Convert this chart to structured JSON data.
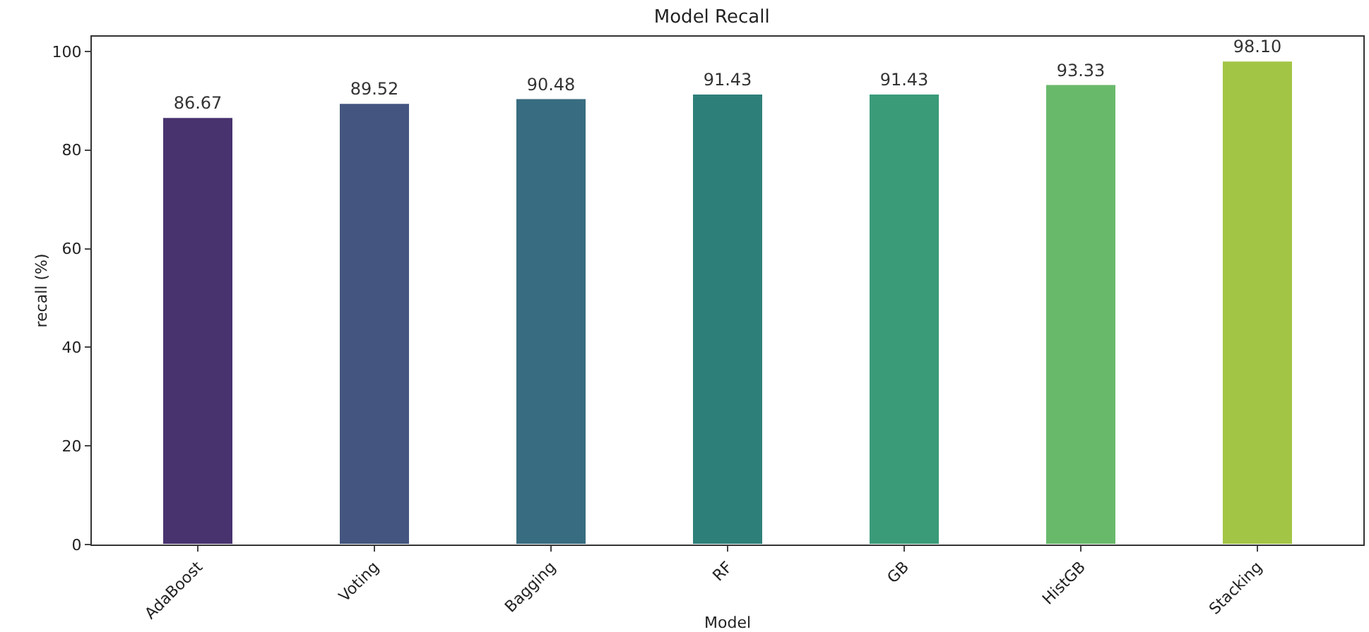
{
  "chart_data": {
    "type": "bar",
    "title": "Model Recall",
    "xlabel": "Model",
    "ylabel": "recall (%)",
    "categories": [
      "AdaBoost",
      "Voting",
      "Bagging",
      "RF",
      "GB",
      "HistGB",
      "Stacking"
    ],
    "values": [
      86.67,
      89.52,
      90.48,
      91.43,
      91.43,
      93.33,
      98.1
    ],
    "value_labels": [
      "86.67",
      "89.52",
      "90.48",
      "91.43",
      "91.43",
      "93.33",
      "98.10"
    ],
    "colors": [
      "#48336f",
      "#44567f",
      "#386c80",
      "#2d8079",
      "#3a9b79",
      "#69b96b",
      "#a3c546"
    ],
    "ylim": [
      0,
      103
    ],
    "yticks": [
      0,
      20,
      40,
      60,
      80,
      100
    ],
    "grid": false,
    "legend": false
  }
}
